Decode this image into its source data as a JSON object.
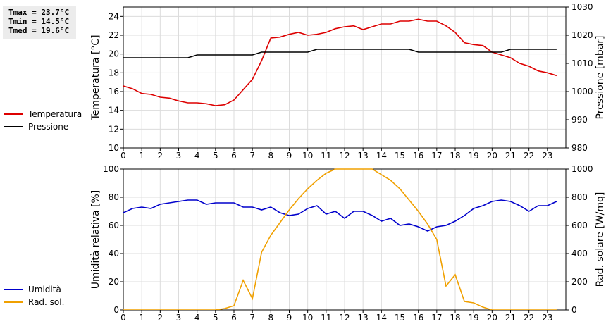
{
  "stats": {
    "tmax": "Tmax = 23.7°C",
    "tmin": "Tmin = 14.5°C",
    "tmed": "Tmed = 19.6°C"
  },
  "chart_data": [
    {
      "type": "line",
      "xlabel": "",
      "ylabel": "Temperatura [°C]",
      "ylabel_right": "Pressione [mbar]",
      "xlim": [
        0,
        24
      ],
      "xticks": [
        0,
        1,
        2,
        3,
        4,
        5,
        6,
        7,
        8,
        9,
        10,
        11,
        12,
        13,
        14,
        15,
        16,
        17,
        18,
        19,
        20,
        21,
        22,
        23
      ],
      "ylim": [
        10,
        25
      ],
      "yticks": [
        10,
        12,
        14,
        16,
        18,
        20,
        22,
        24
      ],
      "ylim_right": [
        980,
        1030
      ],
      "yticks_right": [
        980,
        990,
        1000,
        1010,
        1020,
        1030
      ],
      "grid": true,
      "legend_position": "left",
      "series": [
        {
          "name": "Temperatura",
          "color": "#dd0000",
          "axis": "left",
          "x": [
            0,
            0.5,
            1,
            1.5,
            2,
            2.5,
            3,
            3.5,
            4,
            4.5,
            5,
            5.5,
            6,
            6.5,
            7,
            7.5,
            8,
            8.5,
            9,
            9.5,
            10,
            10.5,
            11,
            11.5,
            12,
            12.5,
            13,
            13.5,
            14,
            14.5,
            15,
            15.5,
            16,
            16.5,
            17,
            17.5,
            18,
            18.5,
            19,
            19.5,
            20,
            20.5,
            21,
            21.5,
            22,
            22.5,
            23,
            23.5
          ],
          "y": [
            16.6,
            16.3,
            15.8,
            15.7,
            15.4,
            15.3,
            15.0,
            14.8,
            14.8,
            14.7,
            14.5,
            14.6,
            15.1,
            16.2,
            17.3,
            19.3,
            21.7,
            21.8,
            22.1,
            22.3,
            22.0,
            22.1,
            22.3,
            22.7,
            22.9,
            23.0,
            22.6,
            22.9,
            23.2,
            23.2,
            23.5,
            23.5,
            23.7,
            23.5,
            23.5,
            23.0,
            22.3,
            21.2,
            21.0,
            20.9,
            20.2,
            19.9,
            19.6,
            19.0,
            18.7,
            18.2,
            18.0,
            17.7
          ]
        },
        {
          "name": "Pressione",
          "color": "#000000",
          "axis": "right",
          "x": [
            0,
            0.5,
            1,
            1.5,
            2,
            2.5,
            3,
            3.5,
            4,
            4.5,
            5,
            5.5,
            6,
            6.5,
            7,
            7.5,
            8,
            8.5,
            9,
            9.5,
            10,
            10.5,
            11,
            11.5,
            12,
            12.5,
            13,
            13.5,
            14,
            14.5,
            15,
            15.5,
            16,
            16.5,
            17,
            17.5,
            18,
            18.5,
            19,
            19.5,
            20,
            20.5,
            21,
            21.5,
            22,
            22.5,
            23,
            23.5
          ],
          "y": [
            1012,
            1012,
            1012,
            1012,
            1012,
            1012,
            1012,
            1012,
            1013,
            1013,
            1013,
            1013,
            1013,
            1013,
            1013,
            1014,
            1014,
            1014,
            1014,
            1014,
            1014,
            1015,
            1015,
            1015,
            1015,
            1015,
            1015,
            1015,
            1015,
            1015,
            1015,
            1015,
            1014,
            1014,
            1014,
            1014,
            1014,
            1014,
            1014,
            1014,
            1014,
            1014,
            1015,
            1015,
            1015,
            1015,
            1015,
            1015
          ]
        }
      ]
    },
    {
      "type": "line",
      "xlabel": "",
      "ylabel": "Umidità relativa [%]",
      "ylabel_right": "Rad. solare [W/mq]",
      "xlim": [
        0,
        24
      ],
      "xticks": [
        0,
        1,
        2,
        3,
        4,
        5,
        6,
        7,
        8,
        9,
        10,
        11,
        12,
        13,
        14,
        15,
        16,
        17,
        18,
        19,
        20,
        21,
        22,
        23
      ],
      "ylim": [
        0,
        100
      ],
      "yticks": [
        0,
        20,
        40,
        60,
        80,
        100
      ],
      "ylim_right": [
        0,
        1000
      ],
      "yticks_right": [
        0,
        200,
        400,
        600,
        800,
        1000
      ],
      "grid": true,
      "legend_position": "left",
      "series": [
        {
          "name": "Umidità",
          "color": "#0000cc",
          "axis": "left",
          "x": [
            0,
            0.5,
            1,
            1.5,
            2,
            2.5,
            3,
            3.5,
            4,
            4.5,
            5,
            5.5,
            6,
            6.5,
            7,
            7.5,
            8,
            8.5,
            9,
            9.5,
            10,
            10.5,
            11,
            11.5,
            12,
            12.5,
            13,
            13.5,
            14,
            14.5,
            15,
            15.5,
            16,
            16.5,
            17,
            17.5,
            18,
            18.5,
            19,
            19.5,
            20,
            20.5,
            21,
            21.5,
            22,
            22.5,
            23,
            23.5
          ],
          "y": [
            69,
            72,
            73,
            72,
            75,
            76,
            77,
            78,
            78,
            75,
            76,
            76,
            76,
            73,
            73,
            71,
            73,
            69,
            67,
            68,
            72,
            74,
            68,
            70,
            65,
            70,
            70,
            67,
            63,
            65,
            60,
            61,
            59,
            56,
            59,
            60,
            63,
            67,
            72,
            74,
            77,
            78,
            77,
            74,
            70,
            74,
            74,
            77
          ]
        },
        {
          "name": "Rad. sol.",
          "color": "#f0a000",
          "axis": "right",
          "x": [
            0,
            0.5,
            1,
            1.5,
            2,
            2.5,
            3,
            3.5,
            4,
            4.5,
            5,
            5.5,
            6,
            6.5,
            7,
            7.5,
            8,
            8.5,
            9,
            9.5,
            10,
            10.5,
            11,
            11.5,
            12,
            12.5,
            13,
            13.5,
            14,
            14.5,
            15,
            15.5,
            16,
            16.5,
            17,
            17.5,
            18,
            18.5,
            19,
            19.5,
            20,
            20.5,
            21,
            21.5,
            22,
            22.5,
            23,
            23.5
          ],
          "y": [
            0,
            0,
            0,
            0,
            0,
            0,
            0,
            0,
            0,
            0,
            0,
            10,
            30,
            210,
            80,
            410,
            530,
            620,
            710,
            790,
            860,
            920,
            970,
            1000,
            1000,
            1000,
            1000,
            1000,
            960,
            920,
            860,
            780,
            700,
            610,
            500,
            170,
            250,
            60,
            50,
            20,
            0,
            0,
            0,
            0,
            0,
            0,
            0,
            0
          ]
        }
      ]
    }
  ]
}
